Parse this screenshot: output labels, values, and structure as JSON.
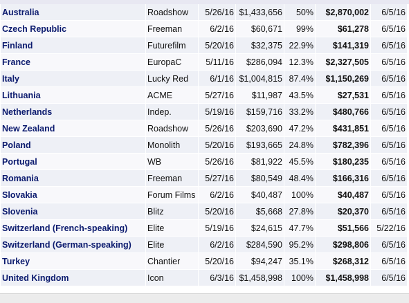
{
  "table": {
    "rows": [
      [
        "Australia",
        "Roadshow",
        "5/26/16",
        "$1,433,656",
        "50%",
        "$2,870,002",
        "6/5/16"
      ],
      [
        "Czech Republic",
        "Freeman",
        "6/2/16",
        "$60,671",
        "99%",
        "$61,278",
        "6/5/16"
      ],
      [
        "Finland",
        "Futurefilm",
        "5/20/16",
        "$32,375",
        "22.9%",
        "$141,319",
        "6/5/16"
      ],
      [
        "France",
        "EuropaC",
        "5/11/16",
        "$286,094",
        "12.3%",
        "$2,327,505",
        "6/5/16"
      ],
      [
        "Italy",
        "Lucky Red",
        "6/1/16",
        "$1,004,815",
        "87.4%",
        "$1,150,269",
        "6/5/16"
      ],
      [
        "Lithuania",
        "ACME",
        "5/27/16",
        "$11,987",
        "43.5%",
        "$27,531",
        "6/5/16"
      ],
      [
        "Netherlands",
        "Indep.",
        "5/19/16",
        "$159,716",
        "33.2%",
        "$480,766",
        "6/5/16"
      ],
      [
        "New Zealand",
        "Roadshow",
        "5/26/16",
        "$203,690",
        "47.2%",
        "$431,851",
        "6/5/16"
      ],
      [
        "Poland",
        "Monolith",
        "5/20/16",
        "$193,665",
        "24.8%",
        "$782,396",
        "6/5/16"
      ],
      [
        "Portugal",
        "WB",
        "5/26/16",
        "$81,922",
        "45.5%",
        "$180,235",
        "6/5/16"
      ],
      [
        "Romania",
        "Freeman",
        "5/27/16",
        "$80,549",
        "48.4%",
        "$166,316",
        "6/5/16"
      ],
      [
        "Slovakia",
        "Forum Films",
        "6/2/16",
        "$40,487",
        "100%",
        "$40,487",
        "6/5/16"
      ],
      [
        "Slovenia",
        "Blitz",
        "5/20/16",
        "$5,668",
        "27.8%",
        "$20,370",
        "6/5/16"
      ],
      [
        "Switzerland (French-speaking)",
        "Elite",
        "5/19/16",
        "$24,615",
        "47.7%",
        "$51,566",
        "5/22/16"
      ],
      [
        "Switzerland (German-speaking)",
        "Elite",
        "6/2/16",
        "$284,590",
        "95.2%",
        "$298,806",
        "6/5/16"
      ],
      [
        "Turkey",
        "Chantier",
        "5/20/16",
        "$94,247",
        "35.1%",
        "$268,312",
        "6/5/16"
      ],
      [
        "United Kingdom",
        "Icon",
        "6/3/16",
        "$1,458,998",
        "100%",
        "$1,458,998",
        "6/5/16"
      ]
    ]
  }
}
